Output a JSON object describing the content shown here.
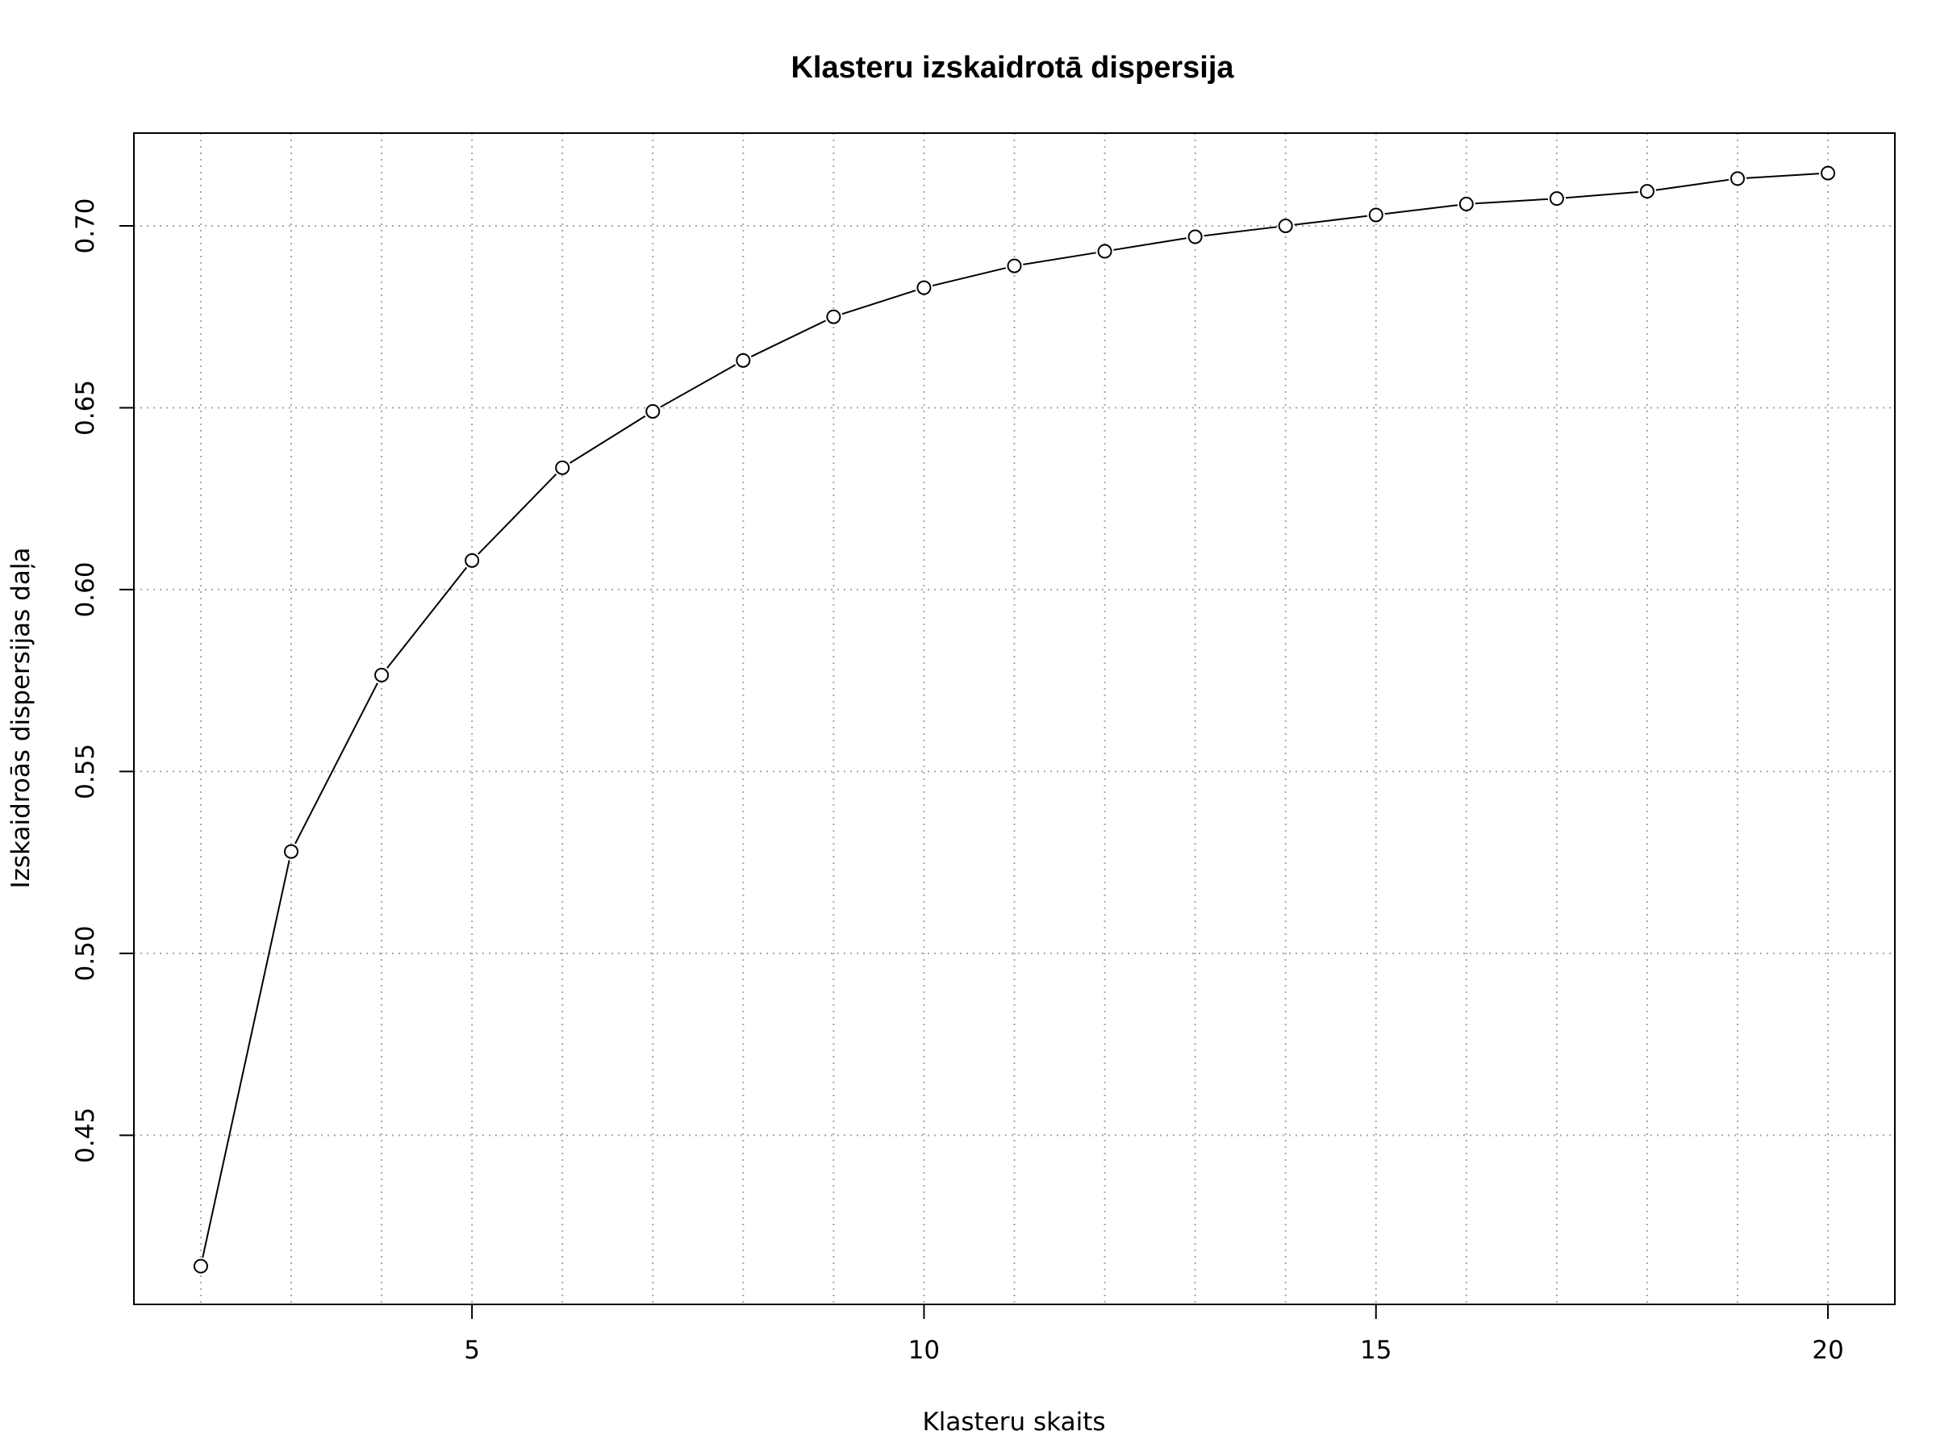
{
  "chart_data": {
    "type": "line",
    "title": "Klasteru izskaidrotā dispersija",
    "xlabel": "Klasteru skaits",
    "ylabel": "Izskaidroās dispersijas daļa",
    "x": [
      2,
      3,
      4,
      5,
      6,
      7,
      8,
      9,
      10,
      11,
      12,
      13,
      14,
      15,
      16,
      17,
      18,
      19,
      20
    ],
    "series": [
      {
        "values": [
          0.414,
          0.528,
          0.5765,
          0.608,
          0.6335,
          0.649,
          0.663,
          0.675,
          0.683,
          0.689,
          0.693,
          0.697,
          0.7,
          0.703,
          0.706,
          0.7075,
          0.7095,
          0.713,
          0.7145
        ]
      }
    ],
    "xlim": [
      1.26,
      20.74
    ],
    "ylim": [
      0.4035,
      0.7255
    ],
    "xticks": [
      "5",
      "10",
      "15",
      "20"
    ],
    "yticks": [
      "0.45",
      "0.50",
      "0.55",
      "0.60",
      "0.65",
      "0.70"
    ],
    "grid": true,
    "marker": "open-circle",
    "line_color": "#000000",
    "grid_color": "#a6a6a6"
  }
}
